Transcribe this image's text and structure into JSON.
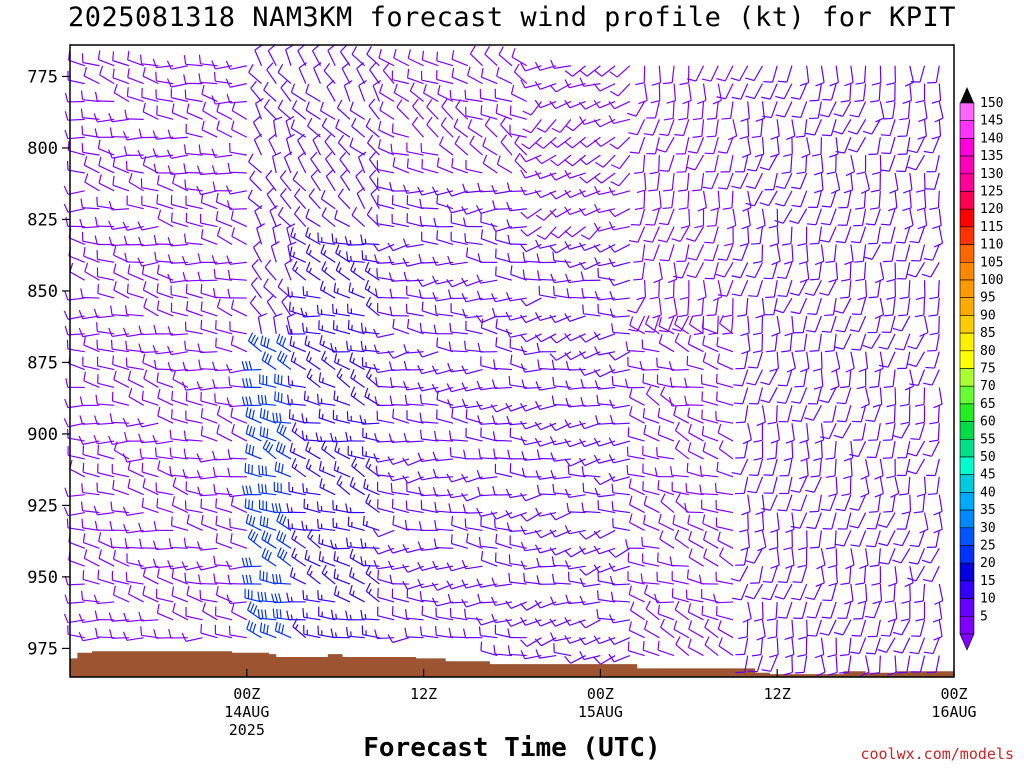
{
  "chart_data": {
    "type": "wind-barb-profile",
    "title": "2025081318 NAM3KM forecast wind profile (kt) for KPIT",
    "xlabel": "Forecast Time (UTC)",
    "ylabel": "",
    "ylim": [
      985,
      764
    ],
    "yticks": [
      775,
      800,
      825,
      850,
      875,
      900,
      925,
      950,
      975
    ],
    "xlim_hours": [
      -12,
      48
    ],
    "xticks": [
      {
        "hour": 0,
        "lines": [
          "00Z",
          "14AUG",
          "2025"
        ]
      },
      {
        "hour": 12,
        "lines": [
          "12Z"
        ]
      },
      {
        "hour": 24,
        "lines": [
          "00Z",
          "15AUG"
        ]
      },
      {
        "hour": 36,
        "lines": [
          "12Z"
        ]
      },
      {
        "hour": 48,
        "lines": [
          "00Z",
          "16AUG"
        ]
      }
    ],
    "colorbar": {
      "levels": [
        5,
        10,
        15,
        20,
        25,
        30,
        35,
        40,
        45,
        50,
        55,
        60,
        65,
        70,
        75,
        80,
        85,
        90,
        95,
        100,
        105,
        110,
        115,
        120,
        125,
        130,
        135,
        140,
        145,
        150
      ],
      "colors": [
        "#8000ff",
        "#6600ff",
        "#3300ff",
        "#0000e0",
        "#0033ff",
        "#0055ff",
        "#0088ff",
        "#00aaff",
        "#00ccdd",
        "#00ffcc",
        "#00e08a",
        "#00dd44",
        "#22ee22",
        "#66ff33",
        "#aaff33",
        "#ffff00",
        "#ffee00",
        "#ffcc00",
        "#ffaa00",
        "#ff9900",
        "#ff8800",
        "#ff6600",
        "#ff3300",
        "#ff0000",
        "#ff0055",
        "#ff0099",
        "#ff00bb",
        "#ff00dd",
        "#ff33ff",
        "#ff66ff"
      ]
    },
    "terrain_color": "#9c5530",
    "terrain": [
      {
        "hour": -12,
        "p": 978.5
      },
      {
        "hour": -11.5,
        "p": 976.5
      },
      {
        "hour": -10.5,
        "p": 976
      },
      {
        "hour": -8,
        "p": 976
      },
      {
        "hour": -1,
        "p": 976.5
      },
      {
        "hour": 1.5,
        "p": 977
      },
      {
        "hour": 2,
        "p": 978
      },
      {
        "hour": 5,
        "p": 978
      },
      {
        "hour": 5.5,
        "p": 977
      },
      {
        "hour": 6.5,
        "p": 978
      },
      {
        "hour": 11,
        "p": 978
      },
      {
        "hour": 11.5,
        "p": 978.5
      },
      {
        "hour": 13.5,
        "p": 979.5
      },
      {
        "hour": 16.5,
        "p": 980.5
      },
      {
        "hour": 25.5,
        "p": 980.5
      },
      {
        "hour": 26.5,
        "p": 982
      },
      {
        "hour": 33,
        "p": 982
      },
      {
        "hour": 34.5,
        "p": 983.5
      },
      {
        "hour": 35.5,
        "p": 984
      },
      {
        "hour": 40,
        "p": 984
      },
      {
        "hour": 40.5,
        "p": 983
      },
      {
        "hour": 42,
        "p": 983.5
      },
      {
        "hour": 44,
        "p": 983
      },
      {
        "hour": 60,
        "p": 983
      }
    ],
    "wind_regimes": [
      {
        "hours": [
          -11,
          0.5
        ],
        "p": [
          764,
          985
        ],
        "dir": 290,
        "spd": 8
      },
      {
        "hours": [
          0.5,
          3.5
        ],
        "p": [
          764,
          870
        ],
        "dir": 340,
        "spd": 12
      },
      {
        "hours": [
          0.5,
          3.5
        ],
        "p": [
          870,
          985
        ],
        "dir": 300,
        "spd": 28
      },
      {
        "hours": [
          3.5,
          9.5
        ],
        "p": [
          764,
          830
        ],
        "dir": 330,
        "spd": 10
      },
      {
        "hours": [
          3.5,
          9.5
        ],
        "p": [
          830,
          985
        ],
        "dir": 300,
        "spd": 17
      },
      {
        "hours": [
          9.5,
          19.5
        ],
        "p": [
          764,
          810
        ],
        "dir": 310,
        "spd": 8
      },
      {
        "hours": [
          9.5,
          19.5
        ],
        "p": [
          810,
          985
        ],
        "dir": 280,
        "spd": 12
      },
      {
        "hours": [
          19.5,
          26.5
        ],
        "p": [
          764,
          830
        ],
        "dir": 250,
        "spd": 9
      },
      {
        "hours": [
          19.5,
          26.5
        ],
        "p": [
          830,
          985
        ],
        "dir": 270,
        "spd": 10
      },
      {
        "hours": [
          26.5,
          33.5
        ],
        "p": [
          764,
          860
        ],
        "dir": 200,
        "spd": 8
      },
      {
        "hours": [
          26.5,
          33.5
        ],
        "p": [
          860,
          985
        ],
        "dir": 300,
        "spd": 8
      },
      {
        "hours": [
          33.5,
          47.5
        ],
        "p": [
          764,
          985
        ],
        "dir": 200,
        "spd": 10
      },
      {
        "hours": [
          47.5,
          60
        ],
        "p": [
          764,
          985
        ],
        "dir": 180,
        "spd": 12
      }
    ]
  },
  "credit": "coolwx.com/models"
}
